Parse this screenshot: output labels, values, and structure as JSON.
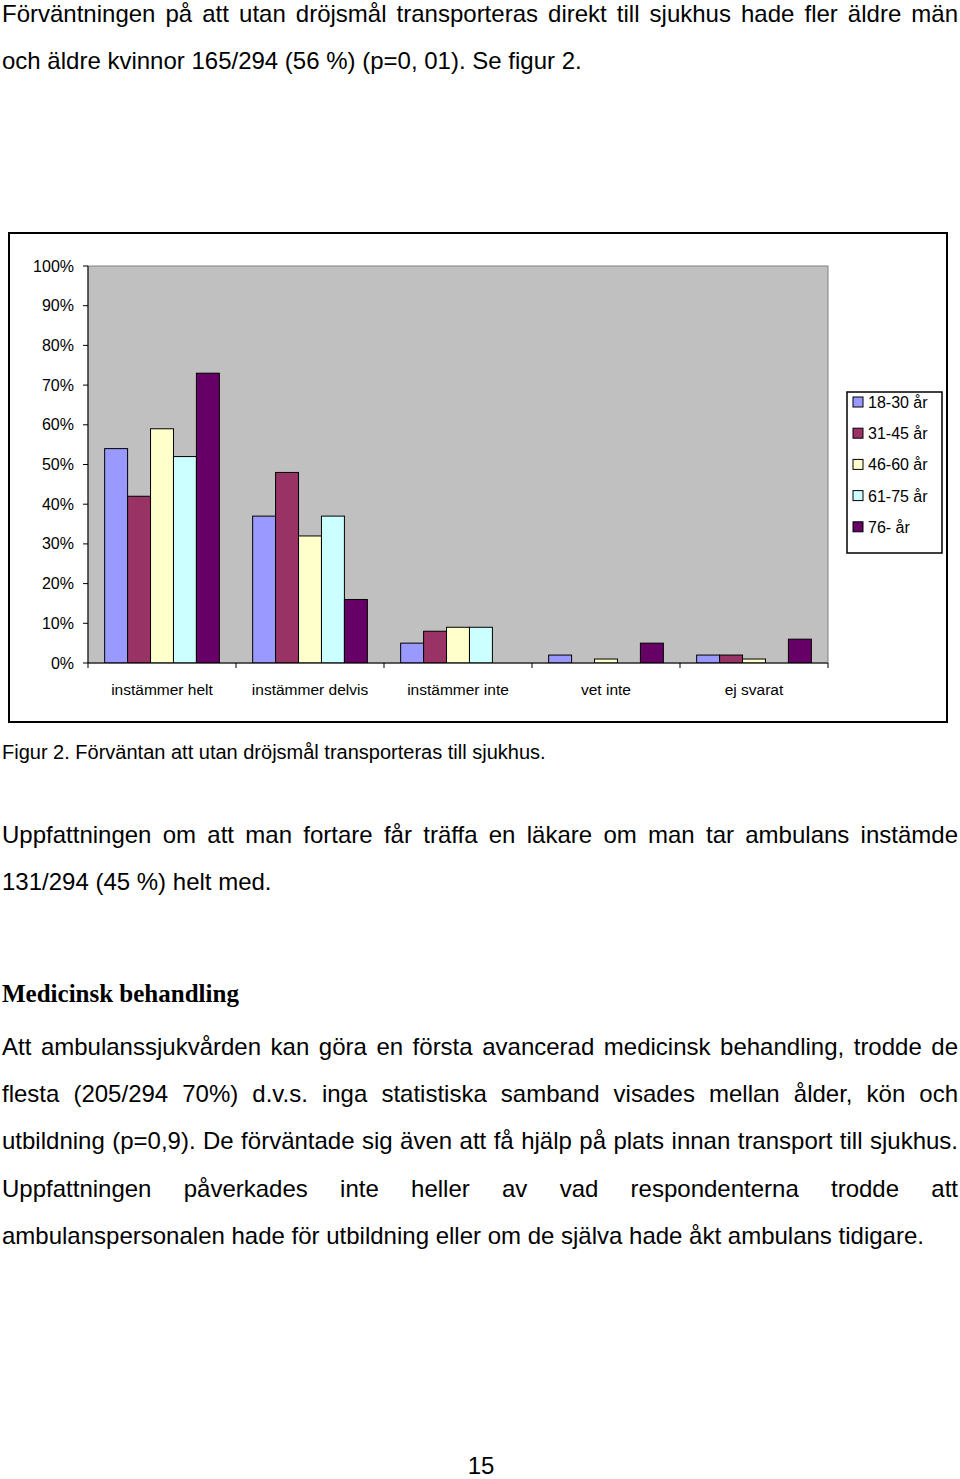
{
  "paragraphs": [
    "Förväntningen på att utan dröjsmål transporteras direkt till sjukhus hade fler äldre män och äldre kvinnor 165/294 (56 %) (p=0, 01). Se figur 2.",
    "Uppfattningen om att man fortare får träffa en läkare om man tar ambulans instämde 131/294 (45 %) helt med.",
    "Att ambulanssjukvården kan göra en första avancerad medicinsk behandling, trodde de flesta (205/294 70%) d.v.s. inga statistiska samband visades mellan ålder, kön och utbildning (p=0,9). De förväntade sig även att få hjälp på plats innan transport till sjukhus. Uppfattningen påverkades inte heller av vad respondenterna trodde att ambulanspersonalen hade för utbildning eller om de själva hade åkt ambulans tidigare."
  ],
  "caption": "Figur 2. Förväntan att utan dröjsmål transporteras till sjukhus.",
  "heading": "Medicinsk behandling",
  "page_number": "15",
  "chart_data": {
    "type": "bar",
    "categories": [
      "instämmer helt",
      "instämmer delvis",
      "instämmer inte",
      "vet inte",
      "ej svarat"
    ],
    "series": [
      {
        "name": "18-30 år",
        "color": "#9999ff",
        "values": [
          54,
          37,
          5,
          2,
          2
        ]
      },
      {
        "name": "31-45 år",
        "color": "#993366",
        "values": [
          42,
          48,
          8,
          0,
          2
        ]
      },
      {
        "name": "46-60 år",
        "color": "#ffffcc",
        "values": [
          59,
          32,
          9,
          1,
          1
        ]
      },
      {
        "name": "61-75 år",
        "color": "#ccffff",
        "values": [
          52,
          37,
          9,
          0,
          0
        ]
      },
      {
        "name": "76- år",
        "color": "#660066",
        "values": [
          73,
          16,
          0,
          5,
          6
        ]
      }
    ],
    "ylim": [
      0,
      100
    ],
    "yticks": [
      {
        "value": 0,
        "label": "0%"
      },
      {
        "value": 10,
        "label": "10%"
      },
      {
        "value": 20,
        "label": "20%"
      },
      {
        "value": 30,
        "label": "30%"
      },
      {
        "value": 40,
        "label": "40%"
      },
      {
        "value": 50,
        "label": "50%"
      },
      {
        "value": 60,
        "label": "60%"
      },
      {
        "value": 70,
        "label": "70%"
      },
      {
        "value": 80,
        "label": "80%"
      },
      {
        "value": 90,
        "label": "90%"
      },
      {
        "value": 100,
        "label": "100%"
      }
    ],
    "grid": false,
    "legend": "right"
  }
}
